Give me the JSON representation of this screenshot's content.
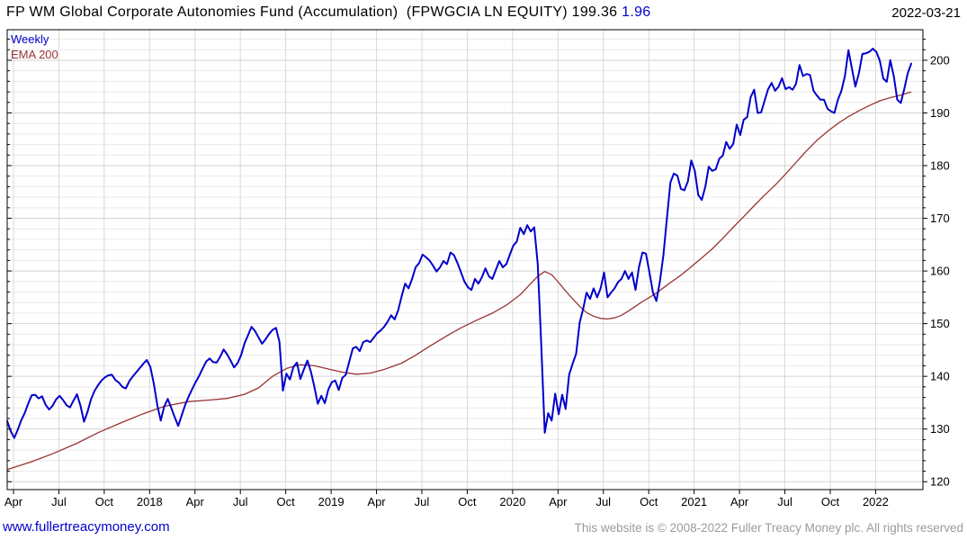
{
  "header": {
    "title": "FP WM Global Corporate Autonomies Fund (Accumulation)  (FPWGCIA LN EQUITY)",
    "last_price": "199.36",
    "change": "1.96",
    "date": "2022-03-21"
  },
  "legend": {
    "series1": "Weekly",
    "series2": "EMA 200"
  },
  "footer": {
    "link": "www.fullertreacymoney.com",
    "copyright": "This website is © 2008-2022 Fuller Treacy Money plc. All rights reserved"
  },
  "colors": {
    "price": "#0000cc",
    "ema": "#993333",
    "change": "#0000cc",
    "link": "#0000cc",
    "copyright": "#9b9b9b",
    "grid_minor": "#eaeaea",
    "grid_major": "#d2d2d2",
    "grid_vertical": "#d9d9d9",
    "axis": "#000000"
  },
  "chart_data": {
    "type": "line",
    "title": "FP WM Global Corporate Autonomies Fund (Accumulation) (FPWGCIA LN EQUITY)",
    "xlabel": "",
    "ylabel": "",
    "ylim": [
      118.5,
      205.8
    ],
    "grid": true,
    "legend_position": "top-left",
    "frequency": "weekly",
    "x_range": [
      "2017-04",
      "2022-03-21"
    ],
    "x_ticks": [
      {
        "week": 1.8,
        "label": "Apr"
      },
      {
        "week": 14.8,
        "label": "Jul"
      },
      {
        "week": 27.8,
        "label": "Oct"
      },
      {
        "week": 40.8,
        "label": "2018"
      },
      {
        "week": 53.8,
        "label": "Apr"
      },
      {
        "week": 66.8,
        "label": "Jul"
      },
      {
        "week": 79.8,
        "label": "Oct"
      },
      {
        "week": 92.8,
        "label": "2019"
      },
      {
        "week": 105.8,
        "label": "Apr"
      },
      {
        "week": 118.8,
        "label": "Jul"
      },
      {
        "week": 131.8,
        "label": "Oct"
      },
      {
        "week": 144.8,
        "label": "2020"
      },
      {
        "week": 157.8,
        "label": "Apr"
      },
      {
        "week": 170.8,
        "label": "Jul"
      },
      {
        "week": 183.8,
        "label": "Oct"
      },
      {
        "week": 196.8,
        "label": "2021"
      },
      {
        "week": 209.8,
        "label": "Apr"
      },
      {
        "week": 222.8,
        "label": "Jul"
      },
      {
        "week": 235.8,
        "label": "Oct"
      },
      {
        "week": 248.8,
        "label": "2022"
      }
    ],
    "y_ticks": [
      120,
      130,
      140,
      150,
      160,
      170,
      180,
      190,
      200
    ],
    "y_minor_start": 120,
    "y_minor_end": 204,
    "y_minor_step": 2,
    "series": [
      {
        "name": "Weekly",
        "color": "#0000cc",
        "values": [
          131.5,
          129.6,
          128.3,
          129.8,
          131.6,
          133.0,
          134.8,
          136.4,
          136.5,
          135.8,
          136.2,
          134.6,
          133.7,
          134.4,
          135.6,
          136.3,
          135.5,
          134.5,
          134.1,
          135.4,
          136.6,
          134.4,
          131.4,
          133.2,
          135.6,
          137.2,
          138.3,
          139.2,
          139.8,
          140.2,
          140.3,
          139.3,
          138.8,
          138.0,
          137.7,
          139.1,
          140.0,
          140.8,
          141.6,
          142.4,
          143.1,
          141.8,
          138.6,
          134.5,
          131.6,
          134.3,
          135.7,
          134.0,
          132.2,
          130.6,
          132.6,
          134.6,
          136.2,
          137.6,
          138.9,
          140.1,
          141.5,
          142.8,
          143.4,
          142.7,
          142.6,
          143.7,
          145.1,
          144.2,
          143.0,
          141.7,
          142.5,
          144.0,
          146.3,
          147.8,
          149.4,
          148.6,
          147.4,
          146.2,
          147.0,
          148.0,
          148.8,
          149.2,
          146.5,
          137.3,
          140.5,
          139.4,
          141.8,
          142.6,
          139.5,
          141.3,
          143.0,
          140.9,
          138.0,
          134.8,
          136.3,
          134.9,
          137.5,
          138.9,
          139.2,
          137.4,
          139.7,
          140.3,
          142.8,
          145.3,
          145.6,
          144.8,
          146.5,
          146.8,
          146.5,
          147.3,
          148.2,
          148.7,
          149.4,
          150.4,
          151.6,
          150.8,
          152.5,
          155.2,
          157.6,
          156.7,
          158.5,
          160.7,
          161.5,
          163.1,
          162.6,
          162.0,
          161.0,
          159.9,
          160.7,
          161.9,
          161.3,
          163.5,
          163.0,
          161.5,
          159.8,
          158.0,
          156.9,
          156.4,
          158.5,
          157.6,
          158.8,
          160.5,
          159.0,
          158.5,
          160.2,
          161.9,
          160.7,
          161.3,
          163.1,
          164.8,
          165.6,
          168.2,
          167.0,
          168.7,
          167.5,
          168.3,
          161.3,
          146.0,
          129.3,
          133.0,
          131.6,
          136.7,
          132.8,
          136.5,
          133.8,
          140.3,
          142.4,
          144.3,
          150.2,
          152.8,
          155.9,
          154.7,
          156.7,
          155.0,
          156.7,
          159.7,
          155.0,
          155.9,
          156.7,
          157.9,
          158.5,
          160.0,
          158.5,
          159.7,
          156.4,
          160.7,
          163.5,
          163.3,
          159.7,
          155.9,
          154.3,
          158.0,
          163.0,
          170.0,
          176.8,
          178.5,
          178.1,
          175.6,
          175.3,
          177.0,
          181.0,
          179.0,
          174.4,
          173.5,
          176.0,
          179.8,
          179.0,
          179.3,
          181.3,
          181.9,
          184.5,
          183.2,
          184.1,
          187.8,
          185.8,
          188.7,
          189.2,
          193.0,
          194.4,
          190.0,
          190.1,
          192.3,
          194.5,
          195.7,
          194.2,
          195.0,
          196.6,
          194.5,
          194.9,
          194.4,
          195.5,
          199.1,
          197.0,
          197.4,
          197.2,
          194.2,
          193.3,
          192.5,
          192.5,
          190.8,
          190.3,
          190.0,
          192.5,
          194.2,
          197.0,
          201.9,
          198.5,
          195.0,
          197.5,
          201.2,
          201.3,
          201.6,
          202.2,
          201.6,
          199.9,
          196.5,
          195.9,
          200.0,
          197.0,
          192.5,
          191.9,
          194.5,
          197.5,
          199.36
        ]
      },
      {
        "name": "EMA 200",
        "color": "#993333",
        "points": [
          [
            0,
            122.3
          ],
          [
            7,
            123.8
          ],
          [
            13,
            125.3
          ],
          [
            20,
            127.3
          ],
          [
            26,
            129.3
          ],
          [
            33,
            131.3
          ],
          [
            39,
            132.9
          ],
          [
            45,
            134.3
          ],
          [
            52,
            135.2
          ],
          [
            58,
            135.5
          ],
          [
            63,
            135.8
          ],
          [
            68,
            136.6
          ],
          [
            72,
            137.8
          ],
          [
            76,
            140.0
          ],
          [
            80,
            141.5
          ],
          [
            84,
            142.2
          ],
          [
            88,
            142.0
          ],
          [
            92,
            141.4
          ],
          [
            96,
            140.8
          ],
          [
            100,
            140.4
          ],
          [
            104,
            140.6
          ],
          [
            108,
            141.3
          ],
          [
            113,
            142.5
          ],
          [
            117,
            144.0
          ],
          [
            121,
            145.7
          ],
          [
            126,
            147.7
          ],
          [
            130,
            149.2
          ],
          [
            134,
            150.5
          ],
          [
            139,
            152.0
          ],
          [
            143,
            153.5
          ],
          [
            147,
            155.5
          ],
          [
            150,
            157.6
          ],
          [
            152,
            159.0
          ],
          [
            154,
            159.9
          ],
          [
            156,
            159.3
          ],
          [
            158,
            157.8
          ],
          [
            160,
            156.2
          ],
          [
            162,
            154.7
          ],
          [
            164,
            153.3
          ],
          [
            166,
            152.1
          ],
          [
            168,
            151.4
          ],
          [
            170,
            151.0
          ],
          [
            172,
            150.9
          ],
          [
            174,
            151.1
          ],
          [
            176,
            151.6
          ],
          [
            178,
            152.4
          ],
          [
            180,
            153.3
          ],
          [
            182,
            154.2
          ],
          [
            184,
            155.0
          ],
          [
            186,
            155.8
          ],
          [
            188,
            156.8
          ],
          [
            190,
            157.8
          ],
          [
            193,
            159.2
          ],
          [
            196,
            160.8
          ],
          [
            199,
            162.5
          ],
          [
            202,
            164.2
          ],
          [
            205,
            166.2
          ],
          [
            208,
            168.3
          ],
          [
            211,
            170.3
          ],
          [
            214,
            172.4
          ],
          [
            217,
            174.4
          ],
          [
            220,
            176.3
          ],
          [
            223,
            178.4
          ],
          [
            226,
            180.6
          ],
          [
            229,
            182.8
          ],
          [
            232,
            184.8
          ],
          [
            235,
            186.5
          ],
          [
            238,
            188.0
          ],
          [
            241,
            189.3
          ],
          [
            244,
            190.4
          ],
          [
            247,
            191.4
          ],
          [
            250,
            192.3
          ],
          [
            253,
            192.9
          ],
          [
            256,
            193.4
          ],
          [
            259,
            194.0
          ]
        ]
      }
    ]
  }
}
